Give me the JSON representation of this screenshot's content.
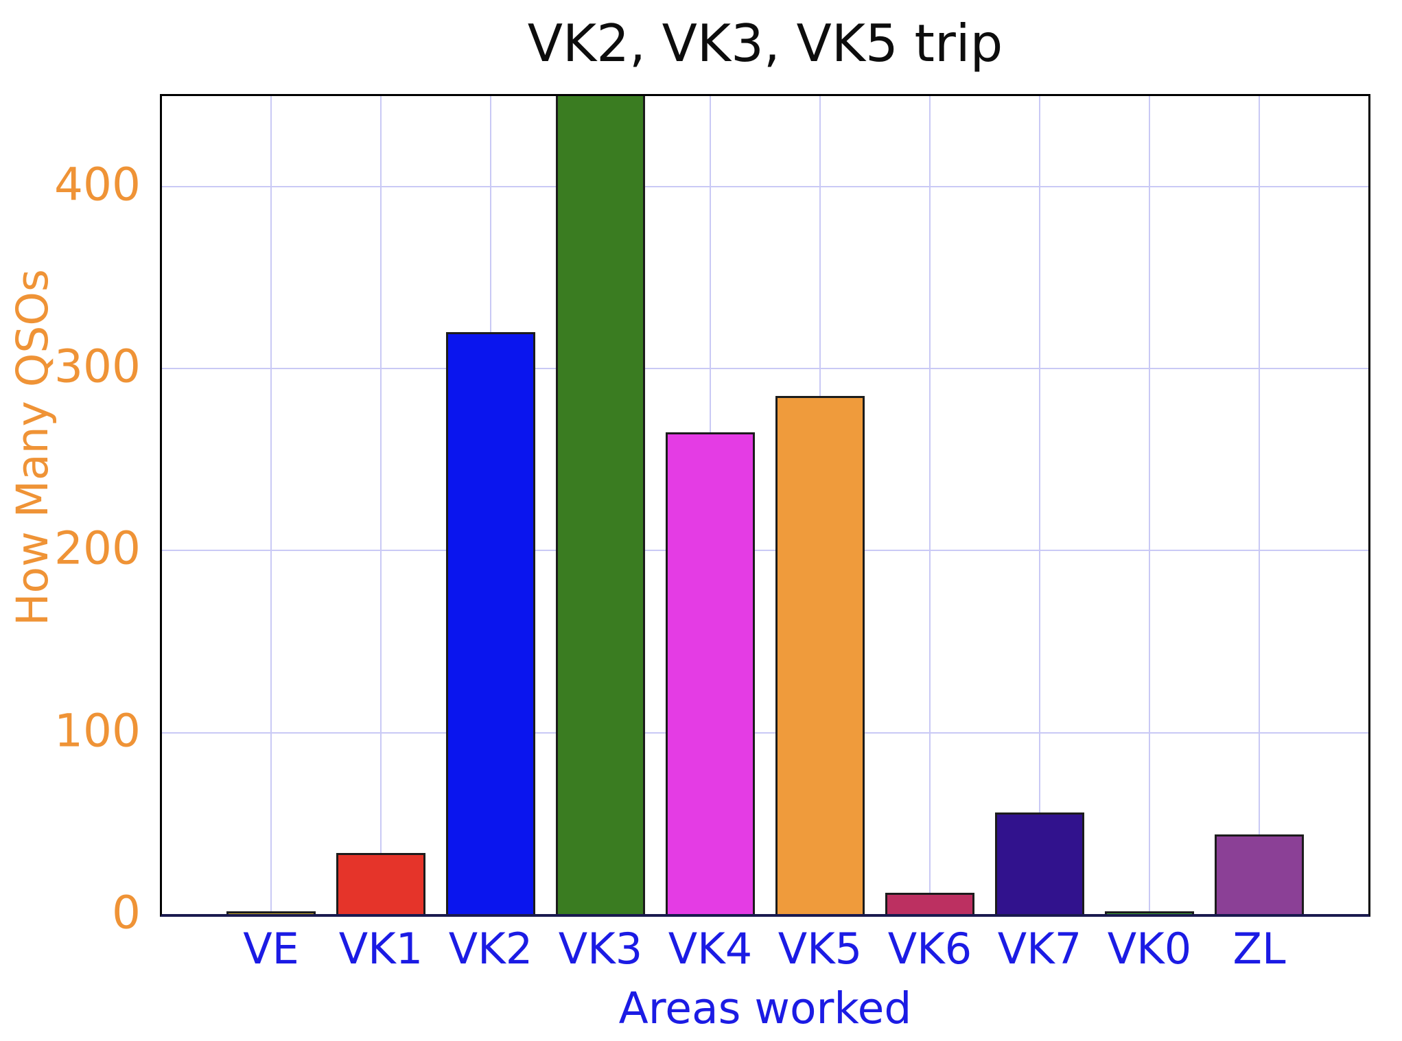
{
  "chart_data": {
    "type": "bar",
    "title": "VK2, VK3, VK5 trip",
    "xlabel": "Areas worked",
    "ylabel": "How Many QSOs",
    "categories": [
      "VE",
      "VK1",
      "VK2",
      "VK3",
      "VK4",
      "VK5",
      "VK6",
      "VK7",
      "VK0",
      "ZL"
    ],
    "values": [
      2,
      34,
      320,
      450,
      265,
      285,
      12,
      56,
      2,
      44
    ],
    "clipped": [
      false,
      false,
      false,
      true,
      false,
      false,
      false,
      false,
      false,
      false
    ],
    "bar_colors": [
      "#c9a92d",
      "#e5342a",
      "#0a15ee",
      "#3a7c21",
      "#e43ce4",
      "#ef9b3c",
      "#bc3061",
      "#31128d",
      "#43a83a",
      "#8b4096"
    ],
    "ylim": [
      0,
      450
    ],
    "yticks": [
      0,
      100,
      200,
      300,
      400
    ],
    "grid": true,
    "legend": "none",
    "note": "VK3 bar is clipped at the top of the axes (value exceeds y-axis maximum of 450)",
    "colors": {
      "ytick_and_ylabel": "#ef9336",
      "xtick_and_xlabel": "#1b1be4",
      "title": "#0d0d0d",
      "gridline": "#c9c9f5",
      "bar_edge": "#1c1c1c",
      "bottom_spine": "#1a1a4f",
      "box_spine": "#000000",
      "background": "#ffffff"
    }
  }
}
